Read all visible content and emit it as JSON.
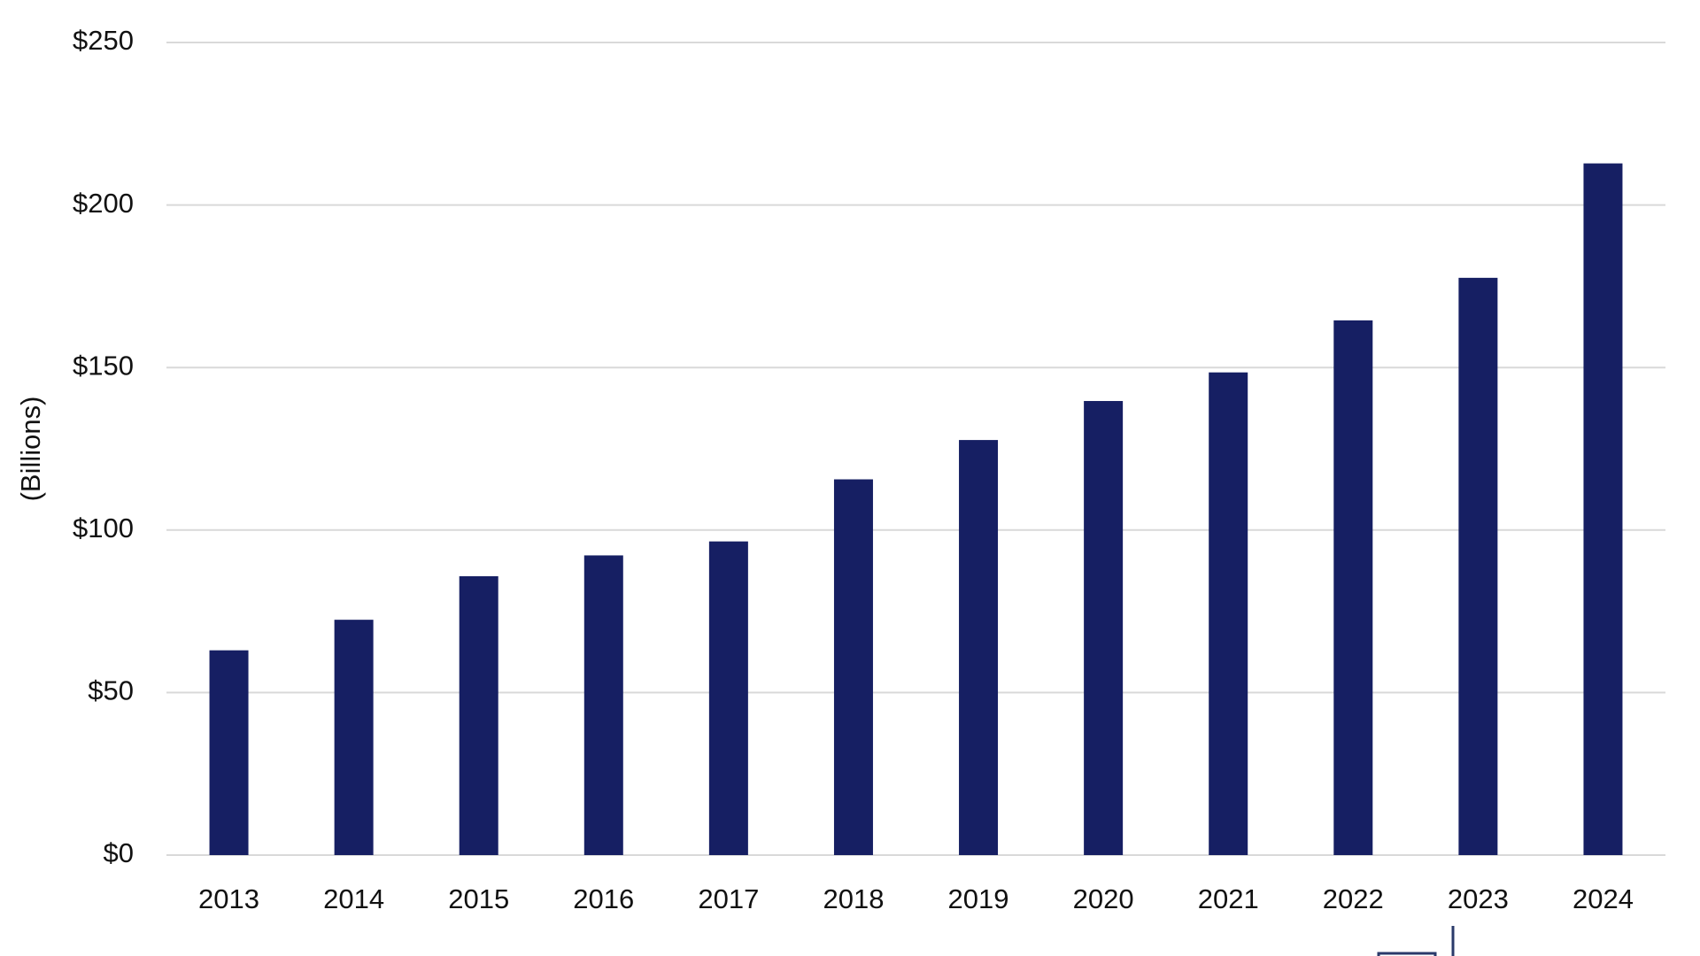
{
  "chart_data": {
    "type": "bar",
    "y_label": "(Billions)",
    "categories": [
      "2013",
      "2014",
      "2015",
      "2016",
      "2017",
      "2018",
      "2019",
      "2020",
      "2021",
      "2022",
      "2023",
      "2024"
    ],
    "values": [
      63.0,
      72.4,
      85.8,
      92.2,
      96.5,
      115.6,
      127.7,
      139.7,
      148.5,
      164.5,
      177.6,
      212.8
    ],
    "color": "#161f63",
    "ylim": [
      0,
      250
    ],
    "yticks": [
      {
        "value": 0,
        "label": "$0"
      },
      {
        "value": 50,
        "label": "$50"
      },
      {
        "value": 100,
        "label": "$100"
      },
      {
        "value": 150,
        "label": "$150"
      },
      {
        "value": 200,
        "label": "$200"
      },
      {
        "value": 250,
        "label": "$250"
      }
    ],
    "grid": true
  }
}
